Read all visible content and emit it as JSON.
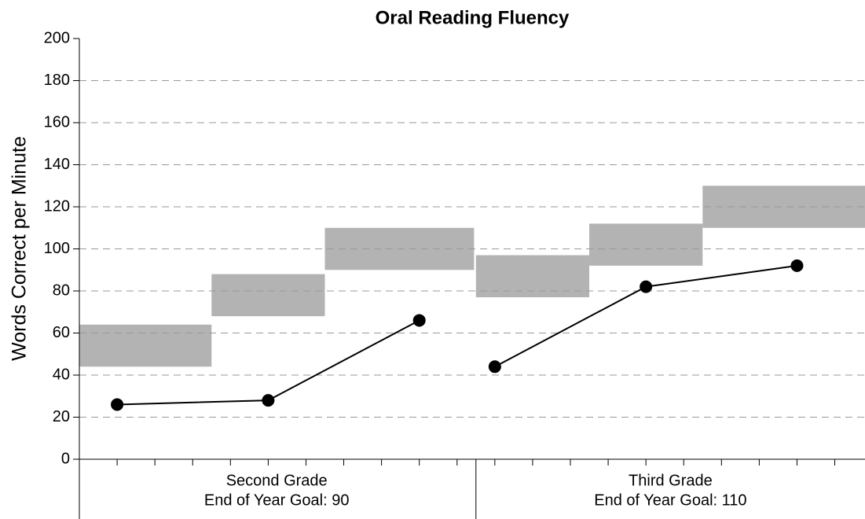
{
  "chart_data": {
    "type": "line",
    "title": "Oral Reading Fluency",
    "y_label": "Words Correct per Minute",
    "ylim": [
      0,
      200
    ],
    "yticks": [
      0,
      20,
      40,
      60,
      80,
      100,
      120,
      140,
      160,
      180,
      200
    ],
    "xlim": [
      0,
      20.8
    ],
    "xticks": [
      1,
      2,
      3,
      4,
      5,
      6,
      7,
      8,
      9,
      10,
      11,
      12,
      13,
      14,
      15,
      16,
      17,
      18,
      19,
      20
    ],
    "grid": true,
    "color": "#000000",
    "range_color": "#b3b3b3",
    "series": [
      {
        "name": "Second Grade",
        "goal": "End of Year Goal: 90",
        "x": [
          1,
          5,
          9
        ],
        "values": [
          26,
          28,
          66
        ],
        "ranges": [
          {
            "x": [
              0,
              3.5
            ],
            "y": [
              44,
              64
            ]
          },
          {
            "x": [
              3.5,
              6.5
            ],
            "y": [
              68,
              88
            ]
          },
          {
            "x": [
              6.5,
              10.45
            ],
            "y": [
              90,
              110
            ]
          }
        ]
      },
      {
        "name": "Third Grade",
        "goal": "End of Year Goal: 110",
        "x": [
          11,
          15,
          19
        ],
        "values": [
          44,
          82,
          92
        ],
        "ranges": [
          {
            "x": [
              10.5,
              13.5
            ],
            "y": [
              77,
              97
            ]
          },
          {
            "x": [
              13.5,
              16.5
            ],
            "y": [
              92,
              112
            ]
          },
          {
            "x": [
              16.5,
              20.8
            ],
            "y": [
              110,
              130
            ]
          }
        ]
      }
    ]
  }
}
